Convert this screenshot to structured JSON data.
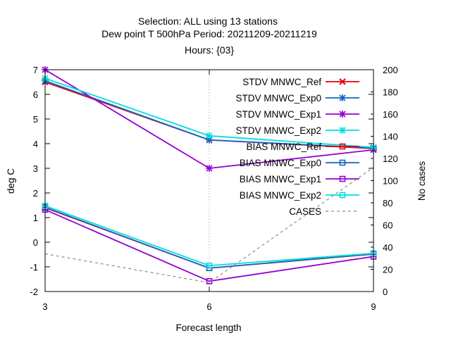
{
  "chart_data": {
    "type": "line",
    "title_lines": [
      "Selection: ALL using    13 stations",
      "Dew point T 500hPa   Period: 20211209-20211219",
      "Hours: {03}"
    ],
    "xlabel": "Forecast length",
    "ylabel": "deg C",
    "y2label": "No cases",
    "x": [
      3,
      6,
      9
    ],
    "xlim": [
      3,
      9
    ],
    "ylim": [
      -2,
      7
    ],
    "y2lim": [
      0,
      200
    ],
    "xticks": [
      "3",
      "6",
      "9"
    ],
    "yticks": [
      "-2",
      "-1",
      "0",
      "1",
      "2",
      "3",
      "4",
      "5",
      "6",
      "7"
    ],
    "y2ticks": [
      "0",
      "20",
      "40",
      "60",
      "80",
      "100",
      "120",
      "140",
      "160",
      "180",
      "200"
    ],
    "grid": "vertical dotted at x=6",
    "legend_position": "top-right",
    "series": [
      {
        "name": "STDV MNWC_Ref",
        "values": [
          6.5,
          4.15,
          3.8
        ],
        "color": "#e8000b",
        "marker": "x",
        "axis": "left"
      },
      {
        "name": "STDV MNWC_Exp0",
        "values": [
          6.55,
          4.15,
          3.82
        ],
        "color": "#1565c0",
        "marker": "star",
        "axis": "left"
      },
      {
        "name": "STDV MNWC_Exp1",
        "values": [
          7.0,
          3.0,
          3.75
        ],
        "color": "#9400d3",
        "marker": "star",
        "axis": "left"
      },
      {
        "name": "STDV MNWC_Exp2",
        "values": [
          6.65,
          4.32,
          3.85
        ],
        "color": "#00dede",
        "marker": "star",
        "axis": "left"
      },
      {
        "name": "BIAS MNWC_Ref",
        "values": [
          1.4,
          -1.05,
          -0.48
        ],
        "color": "#e8000b",
        "marker": "square-open",
        "axis": "left"
      },
      {
        "name": "BIAS MNWC_Exp0",
        "values": [
          1.42,
          -1.05,
          -0.47
        ],
        "color": "#1565c0",
        "marker": "square-open",
        "axis": "left"
      },
      {
        "name": "BIAS MNWC_Exp1",
        "values": [
          1.32,
          -1.58,
          -0.58
        ],
        "color": "#9400d3",
        "marker": "square-open",
        "axis": "left"
      },
      {
        "name": "BIAS MNWC_Exp2",
        "values": [
          1.48,
          -0.95,
          -0.45
        ],
        "color": "#00dede",
        "marker": "square-open",
        "axis": "left"
      },
      {
        "name": "CASES",
        "values": [
          34,
          8,
          112
        ],
        "color": "#8c8c8c",
        "marker": "none",
        "dash": true,
        "axis": "right"
      }
    ]
  }
}
